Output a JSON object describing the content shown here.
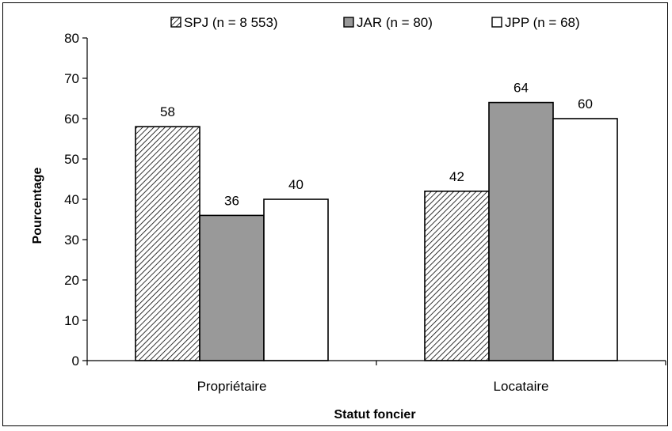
{
  "chart_data": {
    "type": "bar",
    "categories": [
      "Propriétaire",
      "Locataire"
    ],
    "series": [
      {
        "name": "SPJ (n = 8 553)",
        "values": [
          58,
          42
        ],
        "fill": "hatch",
        "color": "#000000"
      },
      {
        "name": "JAR (n = 80)",
        "values": [
          36,
          64
        ],
        "fill": "solid",
        "color": "#999999"
      },
      {
        "name": "JPP (n = 68)",
        "values": [
          40,
          60
        ],
        "fill": "solid",
        "color": "#ffffff"
      }
    ],
    "xlabel": "Statut foncier",
    "ylabel": "Pourcentage",
    "ylim": [
      0,
      80
    ],
    "yticks": [
      0,
      10,
      20,
      30,
      40,
      50,
      60,
      70,
      80
    ],
    "legend_position": "top",
    "grid": false
  }
}
